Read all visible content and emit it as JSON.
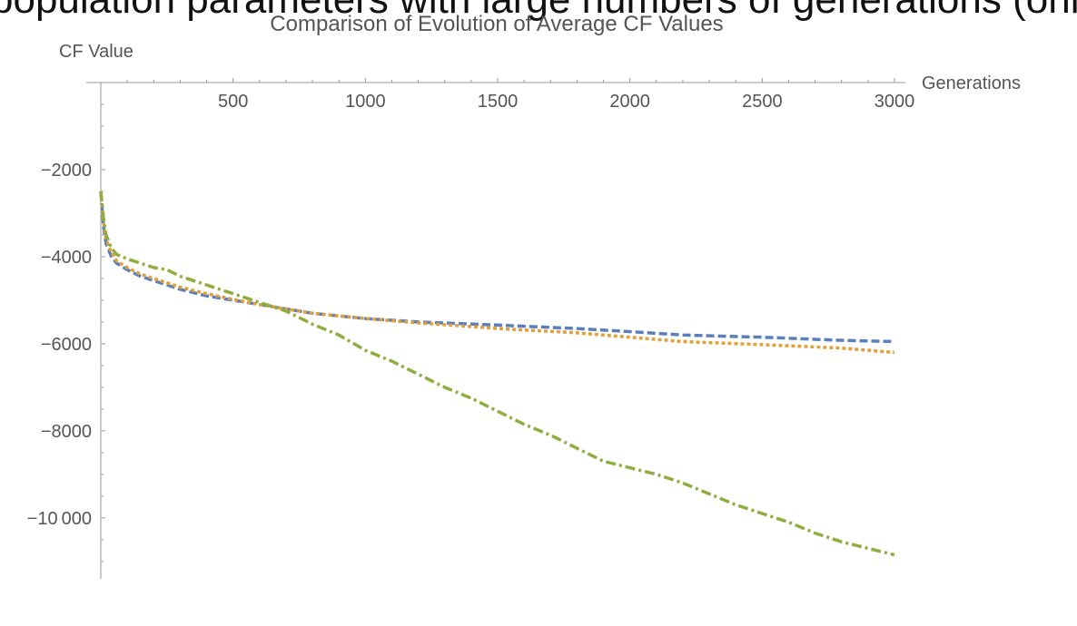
{
  "page_header": {
    "text": "population parameters with large numbers of generations (only every"
  },
  "chart_data": {
    "type": "line",
    "title": "Comparison of Evolution of Average CF Values",
    "xlabel": "Generations",
    "ylabel": "CF Value",
    "xlim": [
      0,
      3000
    ],
    "ylim": [
      -11400,
      0
    ],
    "x_ticks": [
      500,
      1000,
      1500,
      2000,
      2500,
      3000
    ],
    "x_tick_labels": [
      "500",
      "1000",
      "1500",
      "2000",
      "2500",
      "3000"
    ],
    "y_ticks": [
      -2000,
      -4000,
      -6000,
      -8000,
      -10000
    ],
    "y_tick_labels": [
      "−2000",
      "−4000",
      "−6000",
      "−8000",
      "−10 000"
    ],
    "grid": false,
    "legend": "none",
    "series": [
      {
        "color": "#5b7fba",
        "style": "dashed",
        "x": [
          0,
          10,
          20,
          40,
          60,
          100,
          150,
          200,
          300,
          400,
          500,
          600,
          800,
          1000,
          1200,
          1500,
          1800,
          2000,
          2200,
          2500,
          2800,
          3000
        ],
        "y": [
          -2500,
          -3300,
          -3700,
          -4000,
          -4150,
          -4300,
          -4450,
          -4550,
          -4750,
          -4900,
          -5000,
          -5100,
          -5300,
          -5420,
          -5500,
          -5570,
          -5650,
          -5720,
          -5800,
          -5850,
          -5920,
          -5950
        ]
      },
      {
        "color": "#e0a03a",
        "style": "dotted",
        "x": [
          0,
          10,
          20,
          40,
          60,
          100,
          150,
          200,
          300,
          400,
          500,
          600,
          800,
          1000,
          1200,
          1500,
          1800,
          2000,
          2200,
          2500,
          2800,
          3000
        ],
        "y": [
          -2500,
          -3200,
          -3600,
          -3900,
          -4100,
          -4250,
          -4400,
          -4500,
          -4700,
          -4850,
          -4980,
          -5100,
          -5300,
          -5420,
          -5520,
          -5650,
          -5750,
          -5850,
          -5950,
          -6020,
          -6100,
          -6200
        ]
      },
      {
        "color": "#8fae3f",
        "style": "dashdot",
        "x": [
          0,
          10,
          20,
          40,
          60,
          100,
          150,
          200,
          250,
          300,
          400,
          500,
          600,
          700,
          800,
          900,
          1000,
          1100,
          1200,
          1300,
          1400,
          1500,
          1600,
          1700,
          1800,
          1900,
          2000,
          2100,
          2200,
          2300,
          2400,
          2500,
          2600,
          2700,
          2800,
          2900,
          3000
        ],
        "y": [
          -2500,
          -3100,
          -3500,
          -3800,
          -3950,
          -4050,
          -4150,
          -4250,
          -4300,
          -4450,
          -4650,
          -4850,
          -5050,
          -5250,
          -5550,
          -5800,
          -6150,
          -6400,
          -6700,
          -7000,
          -7250,
          -7550,
          -7850,
          -8100,
          -8400,
          -8700,
          -8850,
          -9000,
          -9200,
          -9450,
          -9700,
          -9900,
          -10100,
          -10350,
          -10550,
          -10700,
          -10850
        ]
      }
    ]
  }
}
